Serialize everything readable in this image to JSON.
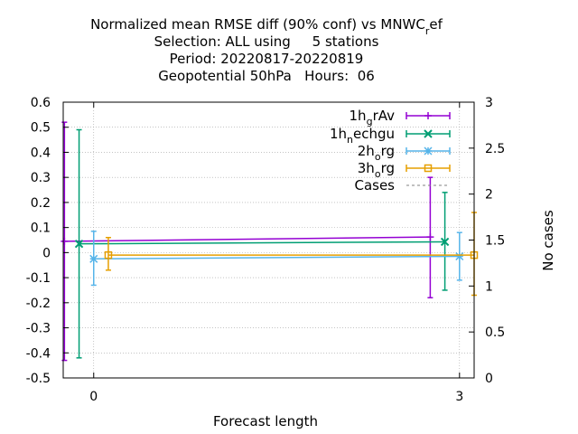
{
  "title_lines": [
    "Normalized mean RMSE diff (90% conf) vs MNWC_ref",
    "Selection: ALL using     5 stations",
    "Period: 20220817-20220819",
    "Geopotential 50hPa   Hours:  06"
  ],
  "chart_data": {
    "type": "line",
    "title": "Normalized mean RMSE diff (90% conf) vs MNWC_ref",
    "xlabel": "Forecast length",
    "ylabel": "",
    "y2label": "No cases",
    "x_ticks": [
      "0",
      "3"
    ],
    "y_ticks": [
      "0.6",
      "0.5",
      "0.4",
      "0.3",
      "0.2",
      "0.1",
      "0",
      "-0.1",
      "-0.2",
      "-0.3",
      "-0.4",
      "-0.5"
    ],
    "y2_ticks": [
      "3",
      "2.5",
      "2",
      "1.5",
      "1",
      "0.5",
      "0"
    ],
    "xlim": [
      -0.25,
      3.12
    ],
    "ylim": [
      -0.5,
      0.6
    ],
    "y2lim": [
      0,
      3
    ],
    "grid": true,
    "legend_position": "top-right",
    "series": [
      {
        "name": "1h_grAv",
        "legend_text": "1h",
        "legend_sub": "g",
        "legend_tail": "rAv",
        "color": "#9400d3",
        "marker": "plus",
        "x_offset": -0.24,
        "points": [
          {
            "x": 0,
            "y": 0.045,
            "lo": -0.43,
            "hi": 0.52
          },
          {
            "x": 3,
            "y": 0.062,
            "lo": -0.18,
            "hi": 0.3
          }
        ]
      },
      {
        "name": "1h_nechgu",
        "legend_text": "1h",
        "legend_sub": "n",
        "legend_tail": "echgu",
        "color": "#009e73",
        "marker": "cross",
        "x_offset": -0.12,
        "points": [
          {
            "x": 0,
            "y": 0.035,
            "lo": -0.42,
            "hi": 0.49
          },
          {
            "x": 3,
            "y": 0.043,
            "lo": -0.15,
            "hi": 0.24
          }
        ]
      },
      {
        "name": "2h_org",
        "legend_text": "2h",
        "legend_sub": "o",
        "legend_tail": "rg",
        "color": "#56b4e9",
        "marker": "star",
        "x_offset": 0.0,
        "points": [
          {
            "x": 0,
            "y": -0.025,
            "lo": -0.13,
            "hi": 0.085
          },
          {
            "x": 3,
            "y": -0.015,
            "lo": -0.11,
            "hi": 0.08
          }
        ]
      },
      {
        "name": "3h_org",
        "legend_text": "3h",
        "legend_sub": "o",
        "legend_tail": "rg",
        "color": "#e69f00",
        "marker": "square",
        "x_offset": 0.12,
        "points": [
          {
            "x": 0,
            "y": -0.01,
            "lo": -0.07,
            "hi": 0.06
          },
          {
            "x": 3,
            "y": -0.01,
            "lo": -0.17,
            "hi": 0.16
          }
        ]
      },
      {
        "name": "Cases",
        "legend_text": "Cases",
        "legend_sub": "",
        "legend_tail": "",
        "color": "#808080",
        "marker": "dashed",
        "axis": "y2",
        "points": [
          {
            "x": 0,
            "y": 3
          },
          {
            "x": 3,
            "y": 3
          }
        ]
      }
    ]
  }
}
